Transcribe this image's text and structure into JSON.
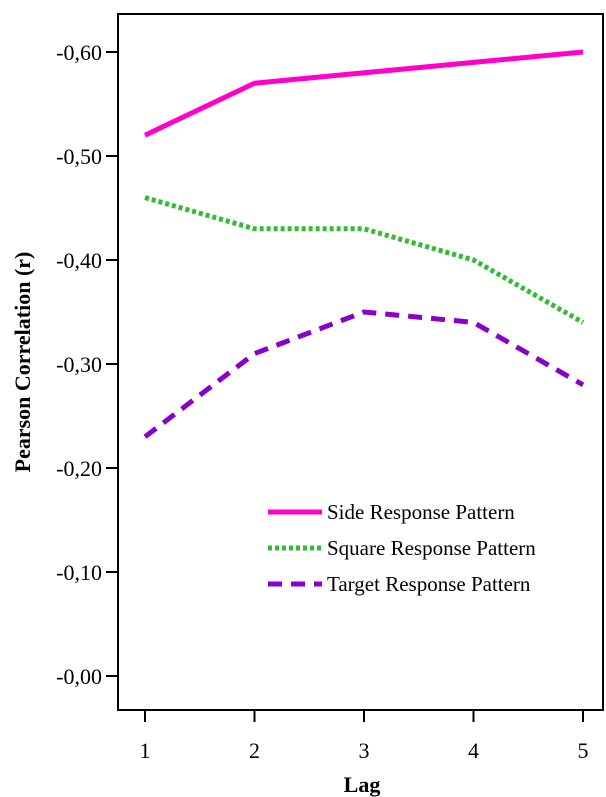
{
  "chart_data": {
    "type": "line",
    "title": "",
    "xlabel": "Lag",
    "ylabel": "Pearson Correlation (r)",
    "x": [
      1,
      2,
      3,
      4,
      5
    ],
    "x_ticks": [
      "1",
      "2",
      "3",
      "4",
      "5"
    ],
    "ylim": [
      -0.0,
      -0.65
    ],
    "y_ticks": [
      {
        "value": -0.0,
        "label": "-0,00"
      },
      {
        "value": -0.1,
        "label": "-0,10"
      },
      {
        "value": -0.2,
        "label": "-0,20"
      },
      {
        "value": -0.3,
        "label": "-0,30"
      },
      {
        "value": -0.4,
        "label": "-0,40"
      },
      {
        "value": -0.5,
        "label": "-0,50"
      },
      {
        "value": -0.6,
        "label": "-0,60"
      }
    ],
    "grid": false,
    "legend_position": "lower-right",
    "series": [
      {
        "name": "Side Response Pattern",
        "values": [
          -0.52,
          -0.57,
          -0.58,
          -0.59,
          -0.6
        ],
        "color": "#ff00cc",
        "style": "solid"
      },
      {
        "name": "Square Response Pattern",
        "values": [
          -0.46,
          -0.43,
          -0.43,
          -0.4,
          -0.34
        ],
        "color": "#33bb33",
        "style": "dotted"
      },
      {
        "name": "Target Response Pattern",
        "values": [
          -0.23,
          -0.31,
          -0.35,
          -0.34,
          -0.28
        ],
        "color": "#8800cc",
        "style": "dashed"
      }
    ]
  }
}
